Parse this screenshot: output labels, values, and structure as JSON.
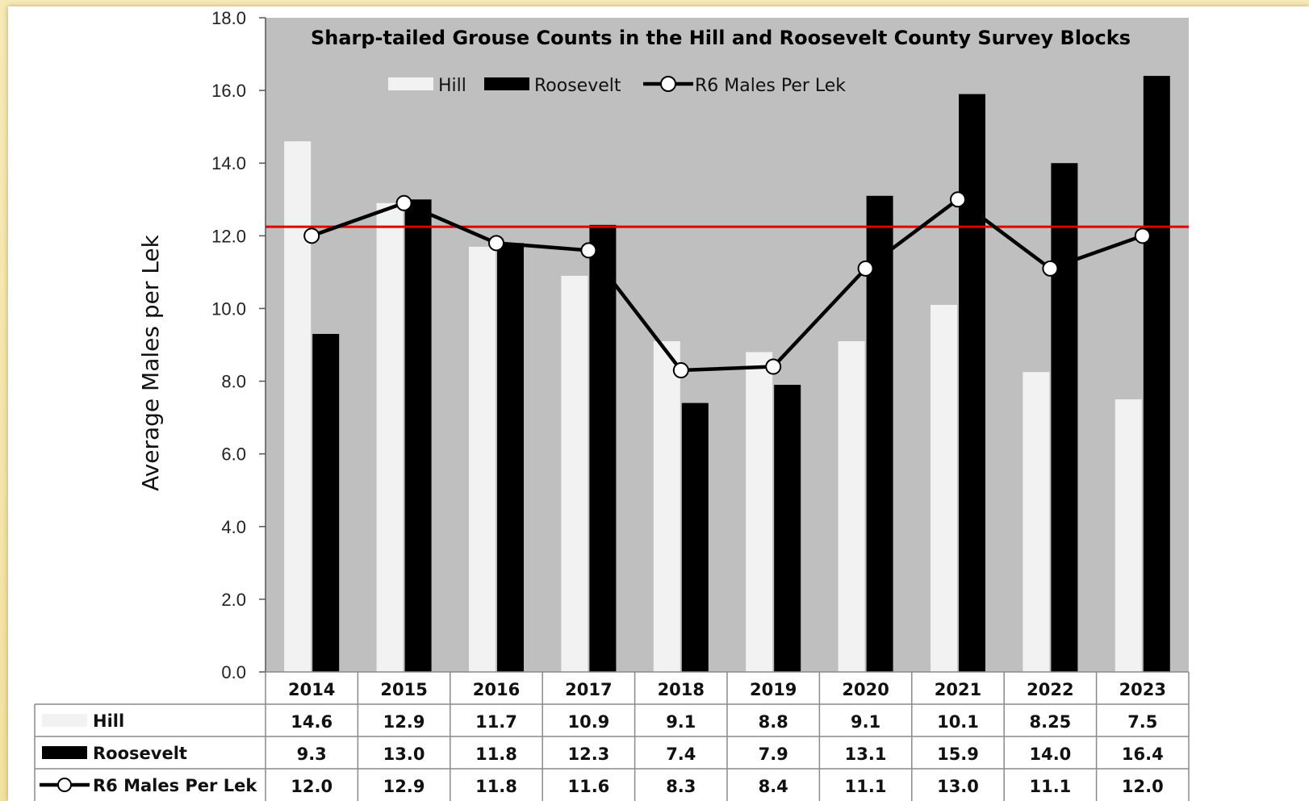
{
  "chart_data": {
    "type": "bar",
    "title": "Sharp-tailed Grouse Counts in the Hill and Roosevelt County Survey Blocks",
    "ylabel": "Average Males per Lek",
    "xlabel": "",
    "ylim": [
      0,
      18
    ],
    "yticks": [
      "0.0",
      "2.0",
      "4.0",
      "6.0",
      "8.0",
      "10.0",
      "12.0",
      "14.0",
      "16.0",
      "18.0"
    ],
    "categories": [
      "2014",
      "2015",
      "2016",
      "2017",
      "2018",
      "2019",
      "2020",
      "2021",
      "2022",
      "2023"
    ],
    "series": [
      {
        "name": "Hill",
        "kind": "bar",
        "color": "#f2f2f2",
        "values": [
          14.6,
          12.9,
          11.7,
          10.9,
          9.1,
          8.8,
          9.1,
          10.1,
          8.25,
          7.5
        ],
        "table": [
          "14.6",
          "12.9",
          "11.7",
          "10.9",
          "9.1",
          "8.8",
          "9.1",
          "10.1",
          "8.25",
          "7.5"
        ]
      },
      {
        "name": "Roosevelt",
        "kind": "bar",
        "color": "#000000",
        "values": [
          9.3,
          13.0,
          11.8,
          12.3,
          7.4,
          7.9,
          13.1,
          15.9,
          14.0,
          16.4
        ],
        "table": [
          "9.3",
          "13.0",
          "11.8",
          "12.3",
          "7.4",
          "7.9",
          "13.1",
          "15.9",
          "14.0",
          "16.4"
        ]
      },
      {
        "name": "R6 Males Per Lek",
        "kind": "line",
        "color": "#000000",
        "values": [
          12.0,
          12.9,
          11.8,
          11.6,
          8.3,
          8.4,
          11.1,
          13.0,
          11.1,
          12.0
        ],
        "table": [
          "12.0",
          "12.9",
          "11.8",
          "11.6",
          "8.3",
          "8.4",
          "11.1",
          "13.0",
          "11.1",
          "12.0"
        ]
      }
    ],
    "reference_line": {
      "value": 12.25,
      "color": "#e00000"
    },
    "plot_background": "#bfbfbf",
    "grid": false,
    "legend_position": "top-center",
    "data_table": true
  }
}
